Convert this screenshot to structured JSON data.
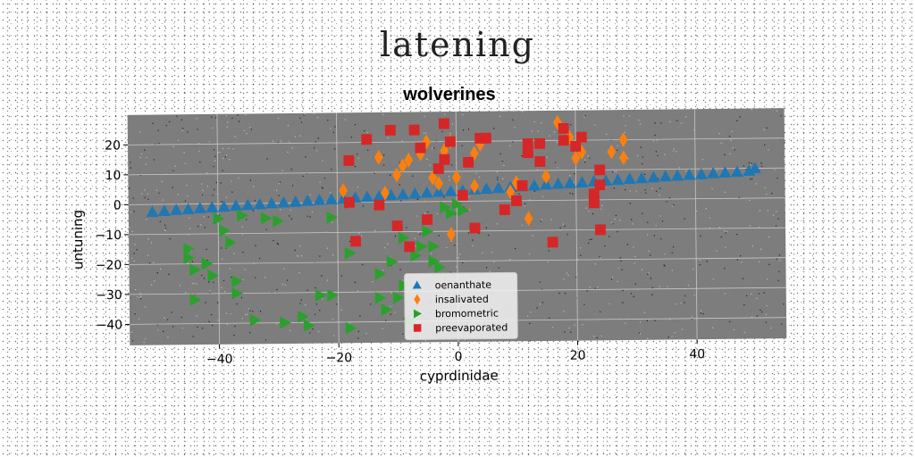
{
  "figure": {
    "suptitle": "latening"
  },
  "chart_data": {
    "type": "scatter",
    "title": "wolverines",
    "xlabel": "cyprdinidae",
    "ylabel": "untuning",
    "xlim": [
      -55,
      55
    ],
    "ylim": [
      -47,
      30
    ],
    "xticks": [
      -40,
      -20,
      0,
      20,
      40
    ],
    "yticks": [
      20,
      10,
      0,
      -10,
      -20,
      -30,
      -40
    ],
    "grid": true,
    "legend_position": "lower-center",
    "series": [
      {
        "name": "oenanthate",
        "marker": "triangle-up",
        "color": "#1f77b4",
        "points": [
          [
            -51,
            -2.5
          ],
          [
            -49,
            -2.2
          ],
          [
            -47,
            -1.9
          ],
          [
            -45,
            -1.7
          ],
          [
            -43,
            -1.4
          ],
          [
            -41,
            -1.2
          ],
          [
            -39,
            -1.0
          ],
          [
            -37,
            -0.7
          ],
          [
            -35,
            -0.5
          ],
          [
            -33,
            -0.3
          ],
          [
            -31,
            0.0
          ],
          [
            -29,
            0.2
          ],
          [
            -27,
            0.4
          ],
          [
            -25,
            0.7
          ],
          [
            -23,
            0.9
          ],
          [
            -21,
            1.1
          ],
          [
            -19,
            1.3
          ],
          [
            -17,
            1.6
          ],
          [
            -15,
            1.8
          ],
          [
            -13,
            2.0
          ],
          [
            -11,
            2.3
          ],
          [
            -9,
            2.5
          ],
          [
            -7,
            2.7
          ],
          [
            -5,
            3.0
          ],
          [
            -3,
            3.2
          ],
          [
            -1,
            3.4
          ],
          [
            1,
            3.6
          ],
          [
            3,
            3.9
          ],
          [
            5,
            4.1
          ],
          [
            7,
            4.3
          ],
          [
            9,
            4.6
          ],
          [
            11,
            4.8
          ],
          [
            13,
            5.0
          ],
          [
            15,
            5.3
          ],
          [
            17,
            5.5
          ],
          [
            19,
            5.7
          ],
          [
            21,
            5.9
          ],
          [
            23,
            6.2
          ],
          [
            25,
            6.4
          ],
          [
            27,
            6.6
          ],
          [
            29,
            6.9
          ],
          [
            31,
            7.1
          ],
          [
            33,
            7.3
          ],
          [
            35,
            7.6
          ],
          [
            37,
            7.8
          ],
          [
            39,
            8.0
          ],
          [
            41,
            8.2
          ],
          [
            43,
            8.5
          ],
          [
            45,
            8.7
          ],
          [
            47,
            8.9
          ],
          [
            49,
            9.2
          ],
          [
            50,
            10.0
          ]
        ]
      },
      {
        "name": "insalivated",
        "marker": "diamond",
        "color": "#ff7f0e",
        "points": [
          [
            -19,
            4
          ],
          [
            -13,
            15
          ],
          [
            -12,
            3
          ],
          [
            -10,
            9
          ],
          [
            -9,
            12
          ],
          [
            -8,
            14
          ],
          [
            -6,
            16
          ],
          [
            -5,
            20
          ],
          [
            -4,
            8
          ],
          [
            -3,
            6
          ],
          [
            -2,
            17
          ],
          [
            -1,
            20
          ],
          [
            0,
            8
          ],
          [
            -1,
            -11
          ],
          [
            3,
            5
          ],
          [
            3,
            16
          ],
          [
            4,
            19
          ],
          [
            9,
            3
          ],
          [
            10,
            6
          ],
          [
            12,
            -6
          ],
          [
            15,
            8
          ],
          [
            17,
            26
          ],
          [
            19,
            21
          ],
          [
            20,
            14
          ],
          [
            21,
            16
          ],
          [
            26,
            16
          ],
          [
            28,
            20
          ],
          [
            28,
            14
          ]
        ]
      },
      {
        "name": "bromometric",
        "marker": "triangle-right",
        "color": "#2ca02c",
        "points": [
          [
            -45,
            -15
          ],
          [
            -45,
            -18
          ],
          [
            -44,
            -22
          ],
          [
            -44,
            -32
          ],
          [
            -42,
            -20
          ],
          [
            -41,
            -24
          ],
          [
            -40,
            -5
          ],
          [
            -39,
            -9
          ],
          [
            -38,
            -13
          ],
          [
            -37,
            -26
          ],
          [
            -37,
            -30
          ],
          [
            -36,
            -4
          ],
          [
            -34,
            -39
          ],
          [
            -32,
            -5
          ],
          [
            -30,
            -6
          ],
          [
            -29,
            -40
          ],
          [
            -26,
            -38
          ],
          [
            -25,
            -41
          ],
          [
            -23,
            -31
          ],
          [
            -21,
            -31
          ],
          [
            -21,
            -5
          ],
          [
            -18,
            -42
          ],
          [
            -18,
            -17
          ],
          [
            -13,
            -32
          ],
          [
            -12,
            -36
          ],
          [
            -11,
            -20
          ],
          [
            -10,
            -32
          ],
          [
            -9,
            -12
          ],
          [
            -8,
            -40
          ],
          [
            -7,
            -18
          ],
          [
            -6,
            -15
          ],
          [
            -5,
            -10
          ],
          [
            -4,
            -20
          ],
          [
            -4,
            -15
          ],
          [
            -3,
            -22
          ],
          [
            -2,
            -2
          ],
          [
            -1,
            -4
          ],
          [
            0,
            -1
          ],
          [
            1,
            -3
          ],
          [
            -13,
            -24
          ],
          [
            -9,
            -28
          ]
        ]
      },
      {
        "name": "preevaporated",
        "marker": "square",
        "color": "#d62728",
        "points": [
          [
            -18,
            14
          ],
          [
            -18,
            0
          ],
          [
            -17,
            -13
          ],
          [
            -15,
            21
          ],
          [
            -13,
            -1
          ],
          [
            -11,
            24
          ],
          [
            -10,
            -8
          ],
          [
            -8,
            -15
          ],
          [
            -7,
            24
          ],
          [
            -6,
            18
          ],
          [
            -5,
            -6
          ],
          [
            -3,
            11
          ],
          [
            -2,
            14
          ],
          [
            -2,
            26
          ],
          [
            -1,
            20
          ],
          [
            1,
            2
          ],
          [
            2,
            13
          ],
          [
            3,
            -9
          ],
          [
            4,
            21
          ],
          [
            5,
            21
          ],
          [
            8,
            -3
          ],
          [
            10,
            0
          ],
          [
            11,
            5
          ],
          [
            12,
            19
          ],
          [
            12,
            16
          ],
          [
            14,
            13
          ],
          [
            14,
            19
          ],
          [
            16,
            -14
          ],
          [
            18,
            20
          ],
          [
            18,
            24
          ],
          [
            20,
            18
          ],
          [
            21,
            21
          ],
          [
            23,
            -1
          ],
          [
            23,
            2
          ],
          [
            24,
            10
          ],
          [
            24,
            5
          ],
          [
            24,
            -10
          ]
        ]
      }
    ]
  }
}
